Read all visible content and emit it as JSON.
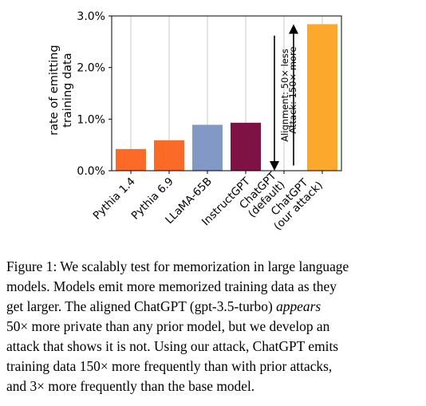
{
  "chart_data": {
    "type": "bar",
    "categories": [
      [
        "Pythia 1.4"
      ],
      [
        "Pythia 6.9"
      ],
      [
        "LLaMA-65B"
      ],
      [
        "InstructGPT"
      ],
      [
        "ChatGPT",
        "(default)"
      ],
      [
        "ChatGPT",
        "(our attack)"
      ]
    ],
    "values": [
      0.42,
      0.59,
      0.89,
      0.93,
      0.0,
      2.84
    ],
    "colors": [
      "#fb6b27",
      "#fb6b27",
      "#8199c4",
      "#7f1244",
      "#fb6b27",
      "#fba82c"
    ],
    "ylabel": [
      "rate of emitting",
      "training data"
    ],
    "ylim": [
      0,
      3.0
    ],
    "yticks": [
      0,
      1,
      2,
      3
    ],
    "ytick_labels": [
      "0.0%",
      "1.0%",
      "2.0%",
      "3.0%"
    ],
    "grid": "vertical lines at categories",
    "annotations": [
      {
        "text": "Alignment: 50× less",
        "direction": "down",
        "from": 2.62,
        "to": 0.0
      },
      {
        "text": "Attack: 150× more",
        "direction": "up",
        "from": 0.1,
        "to": 2.84
      }
    ]
  },
  "caption": {
    "lines": [
      [
        {
          "t": "Figure 1: We scalably test for memorization in large language"
        }
      ],
      [
        {
          "t": "models. Models emit more memorized training data as they"
        }
      ],
      [
        {
          "t": "get larger. The aligned ChatGPT (gpt-3.5-turbo) "
        },
        {
          "t": "appears",
          "em": true
        }
      ],
      [
        {
          "t": "50× more private than any prior model, but we develop an"
        }
      ],
      [
        {
          "t": "attack that shows it is not. Using our attack, ChatGPT emits"
        }
      ],
      [
        {
          "t": "training data 150× more frequently than with prior attacks,"
        }
      ],
      [
        {
          "t": "and 3× more frequently than the base model."
        }
      ]
    ]
  }
}
